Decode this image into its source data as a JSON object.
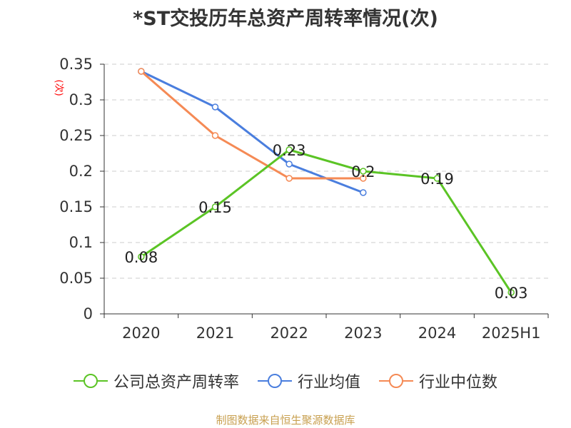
{
  "chart_data": {
    "type": "line",
    "title": "*ST交投历年总资产周转率情况(次)",
    "ylabel": "(次)",
    "xlabel": "",
    "categories": [
      "2020",
      "2021",
      "2022",
      "2023",
      "2024",
      "2025H1"
    ],
    "ylim": [
      0,
      0.35
    ],
    "yticks": [
      "0",
      "0.05",
      "0.1",
      "0.15",
      "0.2",
      "0.25",
      "0.3",
      "0.35"
    ],
    "grid": true,
    "legend_position": "bottom",
    "series": [
      {
        "name": "公司总资产周转率",
        "color": "#5bc425",
        "values": [
          0.08,
          0.15,
          0.23,
          0.2,
          0.19,
          0.03
        ],
        "labels": [
          "0.08",
          "0.15",
          "0.23",
          "0.2",
          "0.19",
          "0.03"
        ]
      },
      {
        "name": "行业均值",
        "color": "#4a7ede",
        "values": [
          0.34,
          0.29,
          0.21,
          0.17,
          null,
          null
        ]
      },
      {
        "name": "行业中位数",
        "color": "#f58a55",
        "values": [
          0.34,
          0.25,
          0.19,
          0.19,
          null,
          null
        ]
      }
    ],
    "source": "制图数据来自恒生聚源数据库"
  }
}
